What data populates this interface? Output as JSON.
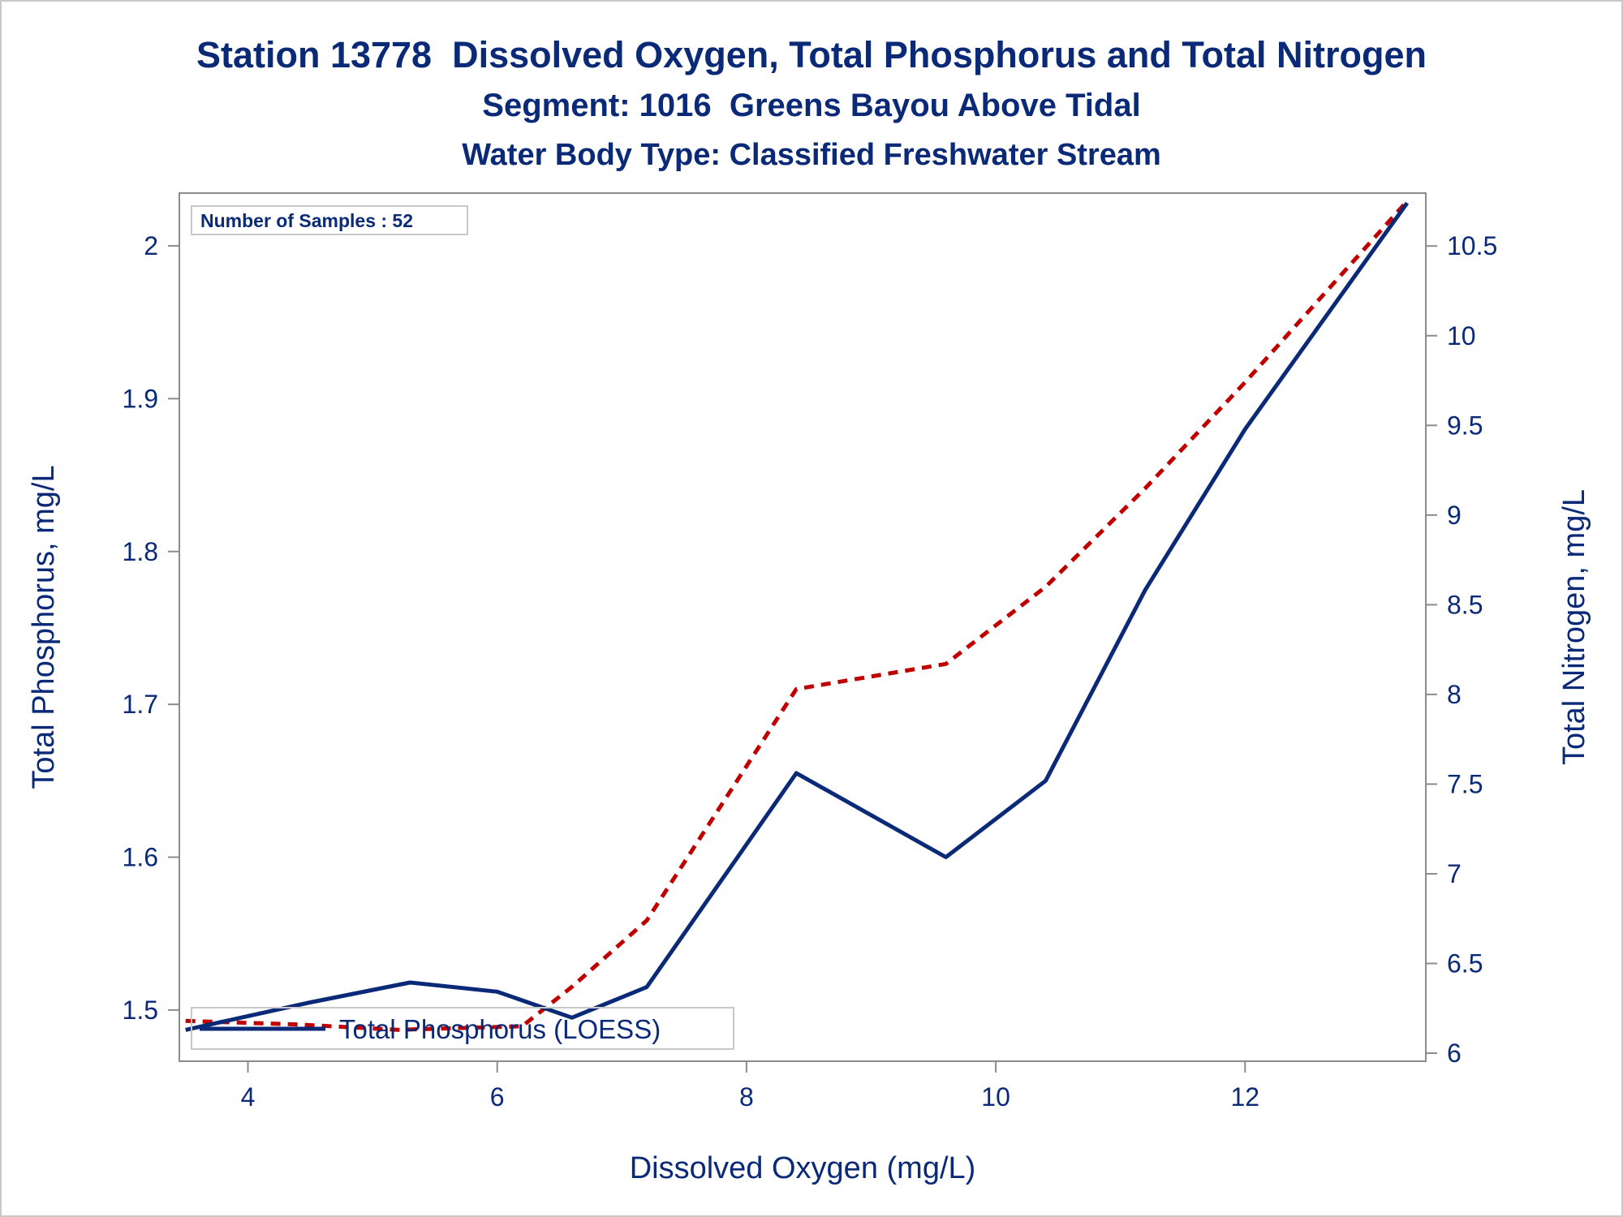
{
  "colors": {
    "text": "#0a2a78",
    "phosphorus_line": "#0a2a78",
    "nitrogen_line": "#c00000",
    "axis": "#8c8c8c",
    "frame": "#c8c8c8"
  },
  "chart_data": {
    "type": "line",
    "title": "Station 13778  Dissolved Oxygen, Total Phosphorus and Total Nitrogen",
    "subtitle": "Segment: 1016  Greens Bayou Above Tidal",
    "subtitle2": "Water Body Type: Classified Freshwater Stream",
    "xlabel": "Dissolved Oxygen (mg/L)",
    "ylabel": "Total Phosphorus, mg/L",
    "y2label": "Total Nitrogen, mg/L",
    "xlim": [
      3.45,
      13.45
    ],
    "ylim": [
      1.4665,
      2.0345
    ],
    "y2lim": [
      5.955,
      10.795
    ],
    "xticks": [
      "4",
      "6",
      "8",
      "10",
      "12"
    ],
    "xtick_values": [
      4,
      6,
      8,
      10,
      12
    ],
    "yticks": [
      "1.5",
      "1.6",
      "1.7",
      "1.8",
      "1.9",
      "2"
    ],
    "ytick_values": [
      1.5,
      1.6,
      1.7,
      1.8,
      1.9,
      2.0
    ],
    "y2ticks": [
      "6",
      "6.5",
      "7",
      "7.5",
      "8",
      "8.5",
      "9",
      "9.5",
      "10",
      "10.5"
    ],
    "y2tick_values": [
      6,
      6.5,
      7,
      7.5,
      8,
      8.5,
      9,
      9.5,
      10,
      10.5
    ],
    "inset": "Number of Samples : 52",
    "legend": {
      "label": "Total Phosphorus (LOESS)",
      "position": "bottom-left"
    },
    "grid": false,
    "series": [
      {
        "name": "Total Phosphorus (LOESS)",
        "axis": "left",
        "style": "solid",
        "x": [
          3.5,
          4.5,
          5.3,
          6.0,
          6.6,
          7.2,
          8.4,
          9.6,
          10.4,
          11.2,
          12.0,
          13.3
        ],
        "y": [
          1.487,
          1.505,
          1.518,
          1.512,
          1.495,
          1.515,
          1.655,
          1.6,
          1.65,
          1.775,
          1.88,
          2.028
        ]
      },
      {
        "axis": "right",
        "style": "dashed",
        "x": [
          3.5,
          4.4,
          5.2,
          6.2,
          6.6,
          7.2,
          8.4,
          9.6,
          10.4,
          11.2,
          12.0,
          13.3
        ],
        "y": [
          6.18,
          6.16,
          6.13,
          6.15,
          6.37,
          6.74,
          8.03,
          8.17,
          8.6,
          9.15,
          9.74,
          10.75
        ]
      }
    ]
  }
}
